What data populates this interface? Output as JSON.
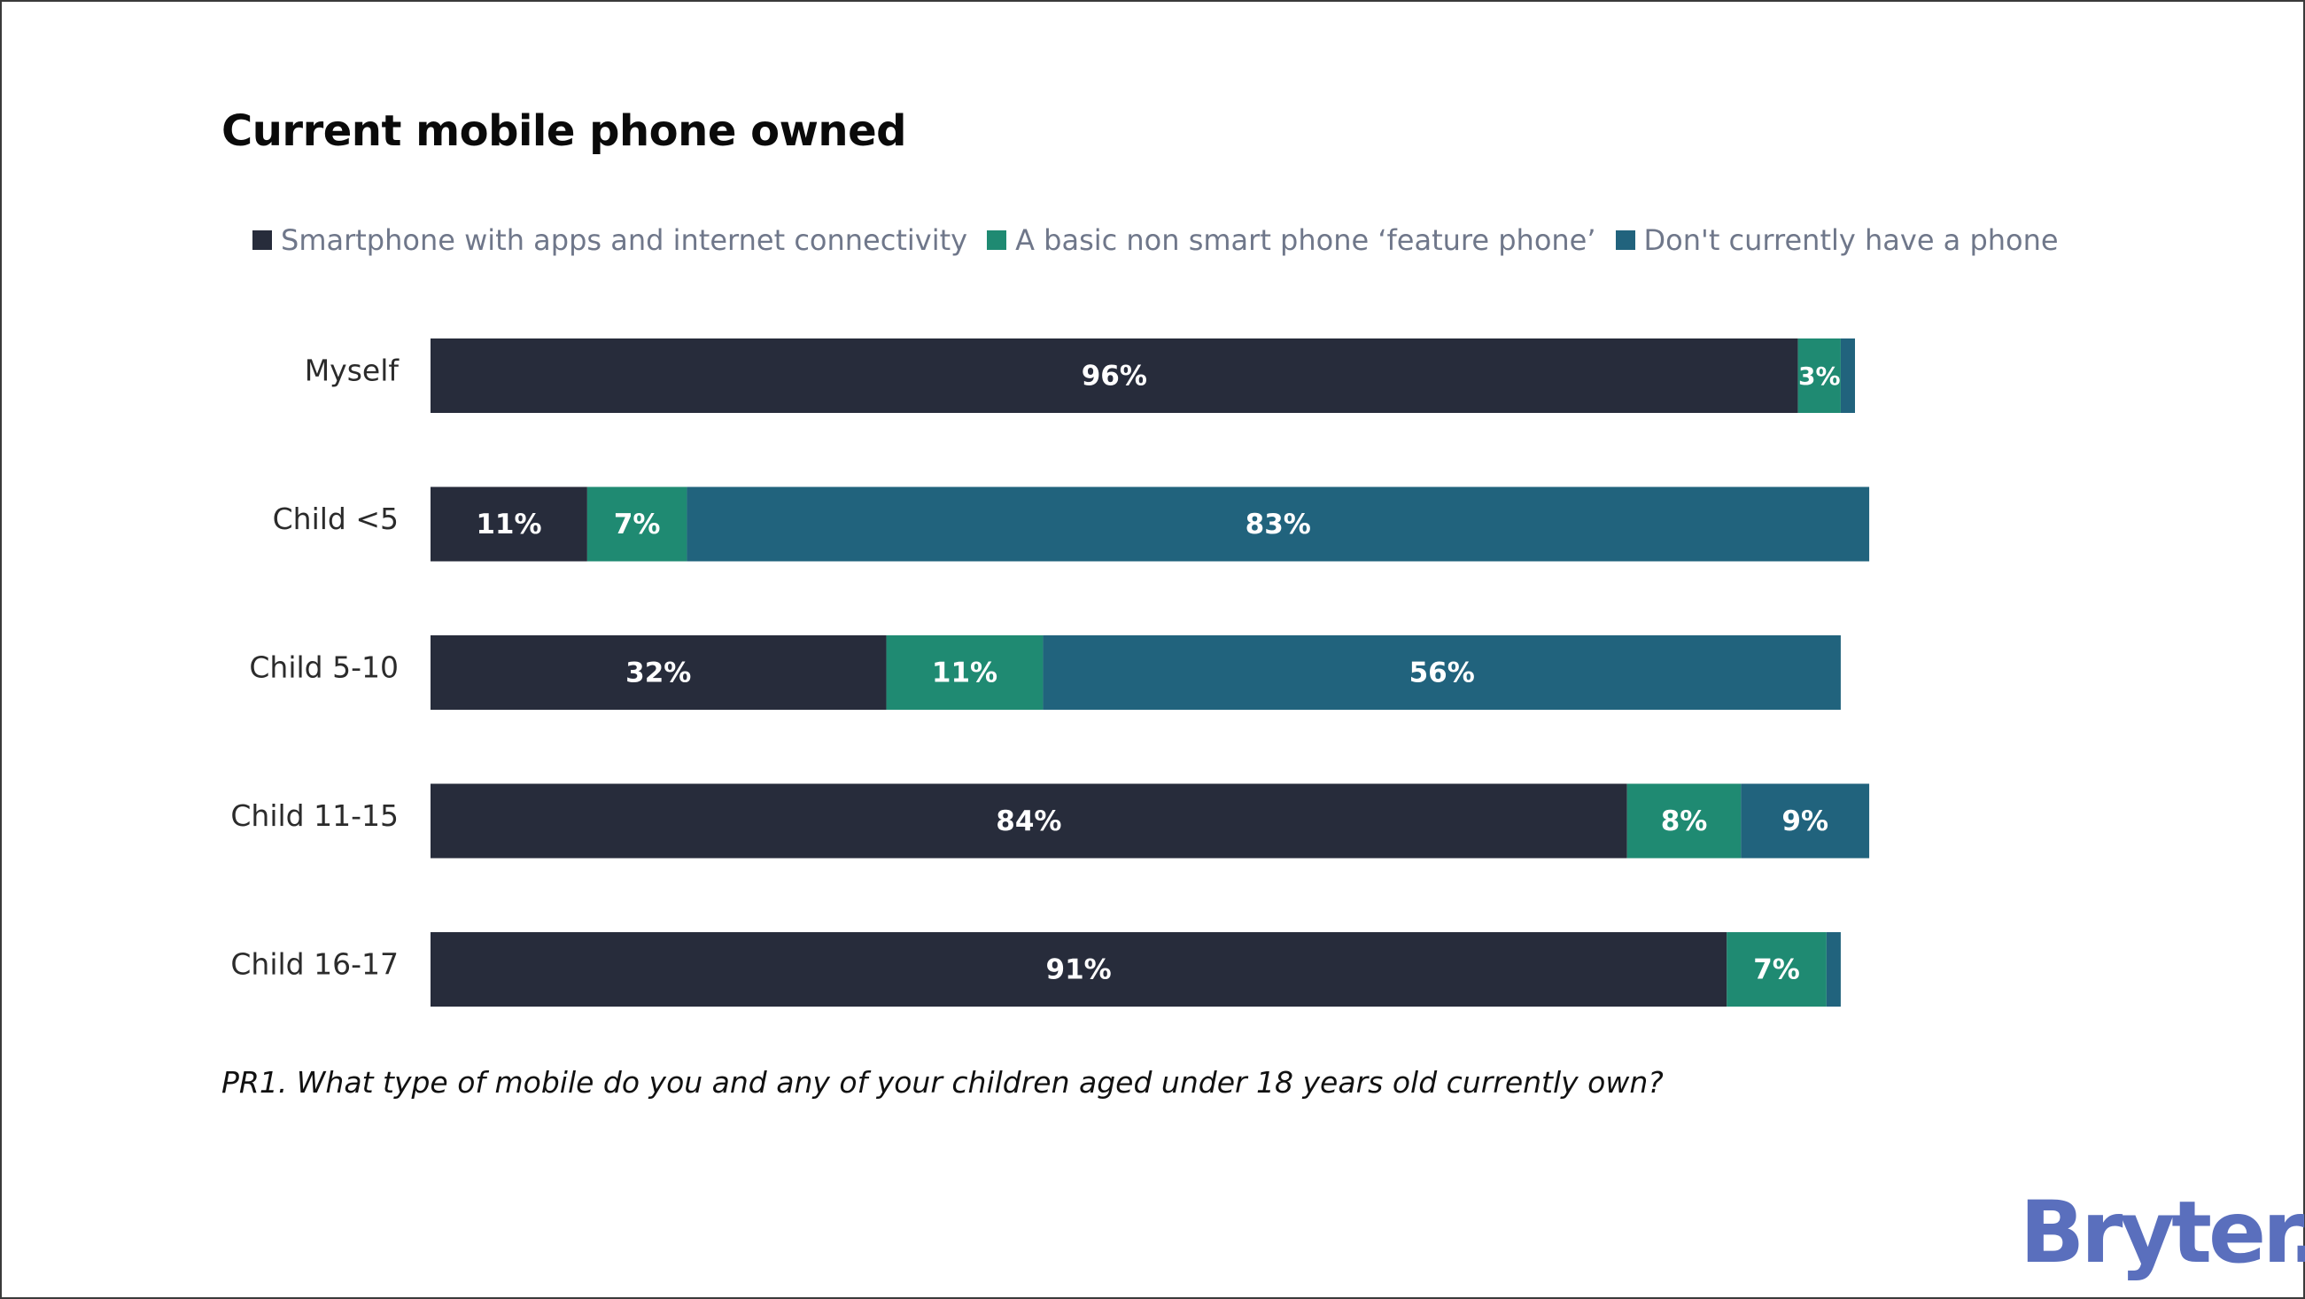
{
  "chart_data": {
    "type": "bar",
    "orientation": "horizontal",
    "stacked": true,
    "title": "Current mobile phone owned",
    "categories": [
      "Myself",
      "Child <5",
      "Child 5-10",
      "Child 11-15",
      "Child 16-17"
    ],
    "series": [
      {
        "name": "Smartphone with apps and internet connectivity",
        "color": "#272c3b",
        "values": [
          96,
          11,
          32,
          84,
          91
        ],
        "labels": [
          "96%",
          "11%",
          "32%",
          "84%",
          "91%"
        ]
      },
      {
        "name": "A basic non smart phone ‘feature phone’",
        "color": "#1f8a72",
        "values": [
          3,
          7,
          11,
          8,
          7
        ],
        "labels": [
          "3%",
          "7%",
          "11%",
          "8%",
          "7%"
        ]
      },
      {
        "name": "Don't currently have a phone",
        "color": "#21637d",
        "values": [
          1,
          83,
          56,
          9,
          1
        ],
        "labels": [
          "",
          "83%",
          "56%",
          "9%",
          ""
        ]
      }
    ],
    "xlim": [
      0,
      100
    ],
    "grid": false,
    "legend_position": "top"
  },
  "footnote": "PR1. What type of mobile do you and any of your children aged under 18 years old currently own?",
  "logo_text": "Bryter."
}
